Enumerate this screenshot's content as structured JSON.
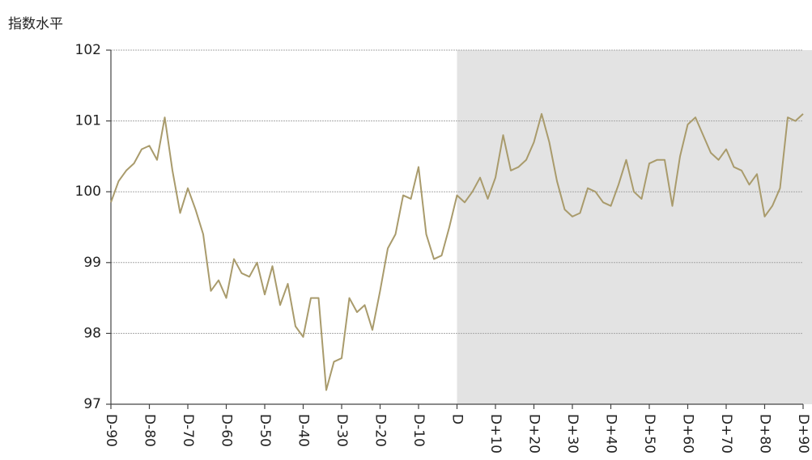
{
  "chart_data": {
    "type": "line",
    "y_label": "指数水平",
    "x": [
      -90,
      -88,
      -86,
      -84,
      -82,
      -80,
      -78,
      -76,
      -74,
      -72,
      -70,
      -68,
      -66,
      -64,
      -62,
      -60,
      -58,
      -56,
      -54,
      -52,
      -50,
      -48,
      -46,
      -44,
      -42,
      -40,
      -38,
      -36,
      -34,
      -32,
      -30,
      -28,
      -26,
      -24,
      -22,
      -20,
      -18,
      -16,
      -14,
      -12,
      -10,
      -8,
      -6,
      -4,
      -2,
      0,
      2,
      4,
      6,
      8,
      10,
      12,
      14,
      16,
      18,
      20,
      22,
      24,
      26,
      28,
      30,
      32,
      34,
      36,
      38,
      40,
      42,
      44,
      46,
      48,
      50,
      52,
      54,
      56,
      58,
      60,
      62,
      64,
      66,
      68,
      70,
      72,
      74,
      76,
      78,
      80,
      82,
      84,
      86,
      88,
      90
    ],
    "series": [
      {
        "name": "指数",
        "color": "#a99b6c",
        "values": [
          99.85,
          100.15,
          100.3,
          100.4,
          100.6,
          100.65,
          100.45,
          101.05,
          100.3,
          99.7,
          100.05,
          99.75,
          99.4,
          98.6,
          98.75,
          98.5,
          99.05,
          98.85,
          98.8,
          99.0,
          98.55,
          98.95,
          98.4,
          98.7,
          98.1,
          97.95,
          98.5,
          98.5,
          97.2,
          97.6,
          97.65,
          98.5,
          98.3,
          98.4,
          98.05,
          98.6,
          99.2,
          99.4,
          99.95,
          99.9,
          100.35,
          99.4,
          99.05,
          99.1,
          99.5,
          99.95,
          99.85,
          100.0,
          100.2,
          99.9,
          100.2,
          100.8,
          100.3,
          100.35,
          100.45,
          100.7,
          101.1,
          100.7,
          100.15,
          99.75,
          99.65,
          99.7,
          100.05,
          100.0,
          99.85,
          99.8,
          100.1,
          100.45,
          100.0,
          99.9,
          100.4,
          100.45,
          100.45,
          99.8,
          100.5,
          100.95,
          101.05,
          100.8,
          100.55,
          100.45,
          100.6,
          100.35,
          100.3,
          100.1,
          100.25,
          99.65,
          99.8,
          100.05,
          101.05,
          101.0,
          101.1
        ]
      }
    ],
    "xlim": [
      -90,
      90
    ],
    "xticks": [
      {
        "value": -90,
        "label": "D-90"
      },
      {
        "value": -80,
        "label": "D-80"
      },
      {
        "value": -70,
        "label": "D-70"
      },
      {
        "value": -60,
        "label": "D-60"
      },
      {
        "value": -50,
        "label": "D-50"
      },
      {
        "value": -40,
        "label": "D-40"
      },
      {
        "value": -30,
        "label": "D-30"
      },
      {
        "value": -20,
        "label": "D-20"
      },
      {
        "value": -10,
        "label": "D-10"
      },
      {
        "value": 0,
        "label": "D"
      },
      {
        "value": 10,
        "label": "D+10"
      },
      {
        "value": 20,
        "label": "D+20"
      },
      {
        "value": 30,
        "label": "D+30"
      },
      {
        "value": 40,
        "label": "D+40"
      },
      {
        "value": 50,
        "label": "D+50"
      },
      {
        "value": 60,
        "label": "D+60"
      },
      {
        "value": 70,
        "label": "D+70"
      },
      {
        "value": 80,
        "label": "D+80"
      },
      {
        "value": 90,
        "label": "D+90"
      }
    ],
    "ylim": [
      97,
      102
    ],
    "yticks": [
      97,
      98,
      99,
      100,
      101,
      102
    ],
    "grid": true,
    "shade_start": 0,
    "shade_color": "#e3e3e3"
  }
}
